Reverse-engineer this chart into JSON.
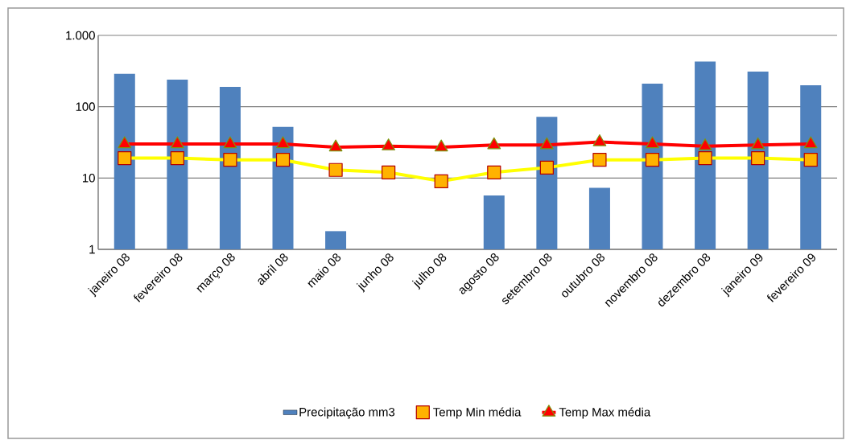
{
  "chart_data": {
    "type": "bar",
    "categories": [
      "janeiro 08",
      "fevereiro 08",
      "março 08",
      "abril 08",
      "maio 08",
      "junho 08",
      "julho 08",
      "agosto 08",
      "setembro 08",
      "outubro 08",
      "novembro 08",
      "dezembro 08",
      "janeiro 09",
      "fevereiro 09"
    ],
    "series": [
      {
        "name": "Precipitação mm3",
        "color": "#4f81bd",
        "values": [
          290,
          240,
          190,
          52,
          1.8,
          null,
          null,
          5.7,
          72,
          7.3,
          210,
          430,
          310,
          200
        ]
      },
      {
        "name": "Temp Min média",
        "type": "line",
        "color": "#ffff00",
        "marker": "square",
        "values": [
          19,
          19,
          18,
          18,
          13,
          12,
          9,
          12,
          14,
          18,
          18,
          19,
          19,
          18
        ]
      },
      {
        "name": "Temp Max média",
        "type": "line",
        "color": "#ff0000",
        "marker": "triangle",
        "values": [
          30,
          30,
          30,
          30,
          27,
          28,
          27,
          29,
          29,
          32,
          30,
          28,
          29,
          30
        ]
      }
    ],
    "log": "y",
    "ylim": [
      1,
      1000
    ],
    "yticks": [
      1,
      10,
      100,
      {
        "value": 1000,
        "label": "1.000"
      }
    ],
    "grid": "y",
    "legend": "bottom"
  }
}
